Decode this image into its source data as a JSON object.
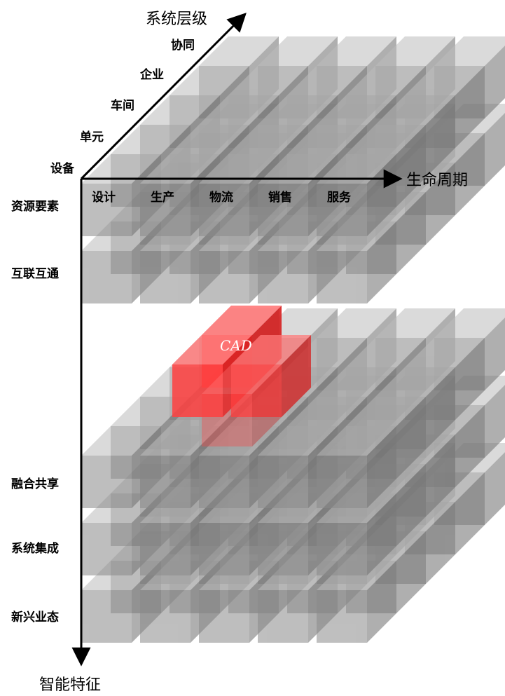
{
  "axes": {
    "system_level": "系统层级",
    "lifecycle": "生命周期",
    "intelligent_features": "智能特征"
  },
  "system_levels": [
    "设备",
    "单元",
    "车间",
    "企业",
    "协同"
  ],
  "lifecycle_stages": [
    "设计",
    "生产",
    "物流",
    "销售",
    "服务"
  ],
  "features_upper": [
    "资源要素",
    "互联互通"
  ],
  "features_lower": [
    "融合共享",
    "系统集成",
    "新兴业态"
  ],
  "highlight_label": "CAD",
  "colors": {
    "cube_front": "#8a8a8a",
    "cube_top": "#bdbdbd",
    "cube_side": "#6f6f6f",
    "highlight_front": "#ff4040",
    "highlight_top": "#ff7a7a",
    "highlight_side": "#d61f1f",
    "axis": "#000000"
  }
}
